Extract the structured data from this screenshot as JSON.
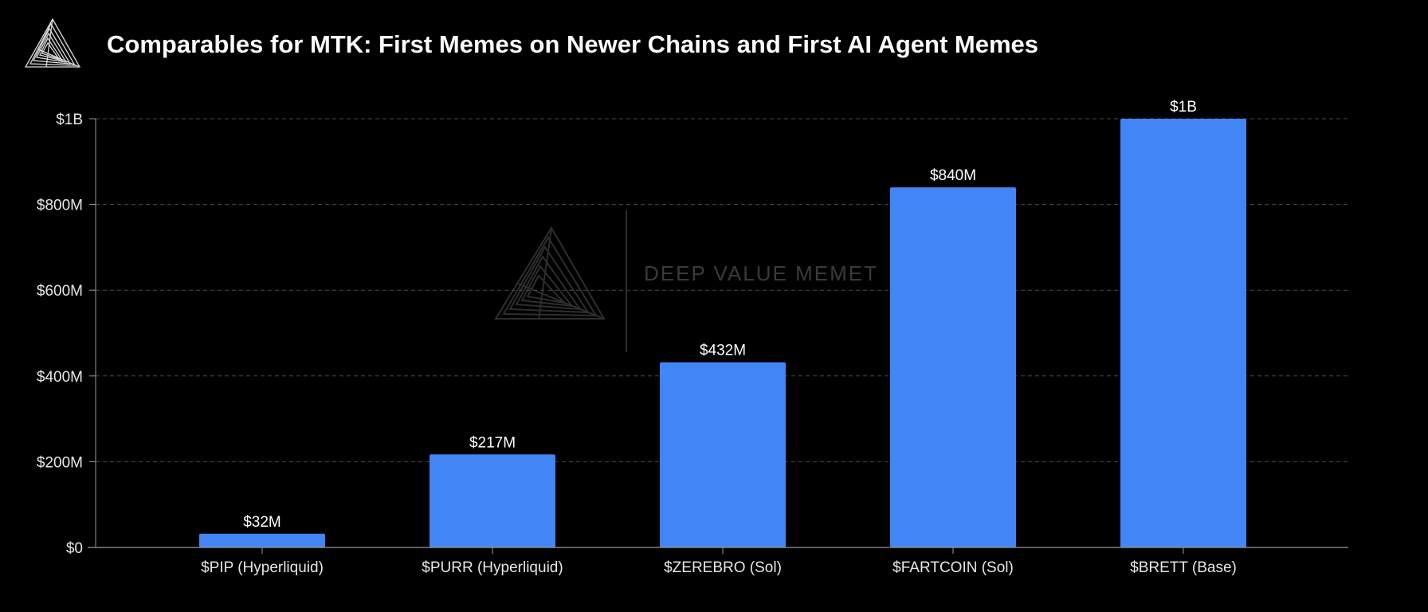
{
  "header": {
    "title": "Comparables for MTK: First Memes on Newer Chains and First AI Agent Memes",
    "logo_icon": "triangle-spiral-logo-icon"
  },
  "watermark": {
    "text": "DEEP VALUE MEMET",
    "icon": "triangle-spiral-watermark-icon"
  },
  "colors": {
    "background": "#000000",
    "bar": "#4285f4",
    "grid": "#4a4a4a",
    "axis": "#9a9a9a",
    "text": "#ffffff"
  },
  "chart_data": {
    "type": "bar",
    "title": "Comparables for MTK: First Memes on Newer Chains and First AI Agent Memes",
    "categories": [
      "$PIP (Hyperliquid)",
      "$PURR (Hyperliquid)",
      "$ZEREBRO (Sol)",
      "$FARTCOIN (Sol)",
      "$BRETT (Base)"
    ],
    "values": [
      32000000,
      217000000,
      432000000,
      840000000,
      1000000000
    ],
    "data_labels": [
      "$32M",
      "$217M",
      "$432M",
      "$840M",
      "$1B"
    ],
    "xlabel": "",
    "ylabel": "",
    "ylim": [
      0,
      1000000000
    ],
    "yticks": [
      0,
      200000000,
      400000000,
      600000000,
      800000000,
      1000000000
    ],
    "ytick_labels": [
      "$0",
      "$200M",
      "$400M",
      "$600M",
      "$800M",
      "$1B"
    ],
    "grid": true,
    "grid_style": "dashed-horizontal",
    "legend": "none"
  }
}
